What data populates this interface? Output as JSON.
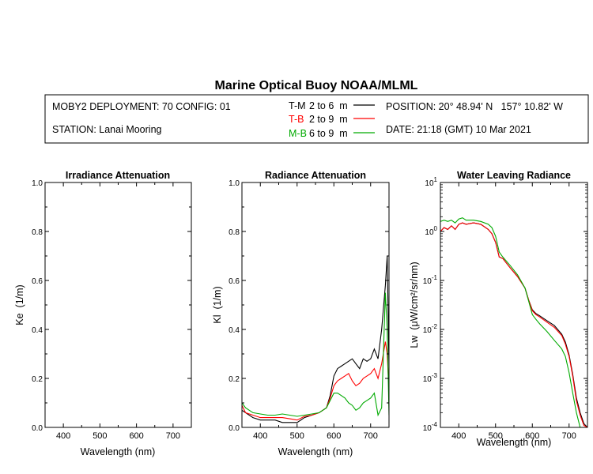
{
  "title": "Marine Optical Buoy NOAA/MLML",
  "info": {
    "deployment": "MOBY2 DEPLOYMENT: 70 CONFIG: 01",
    "station": "STATION: Lanai Mooring",
    "position": "POSITION: 20° 48.94' N   157° 10.82' W",
    "date": "DATE: 21:18 (GMT) 10 Mar 2021"
  },
  "legend": [
    {
      "code": "T-M",
      "range": "2 to 6  m",
      "color": "#000000"
    },
    {
      "code": "T-B",
      "range": "2 to 9  m",
      "color": "#ff0000"
    },
    {
      "code": "M-B",
      "range": "6 to 9  m",
      "color": "#00aa00"
    }
  ],
  "chart_data": [
    {
      "type": "line",
      "title": "Irradiance Attenuation",
      "xlabel": "Wavelength (nm)",
      "ylabel": "Ke  (1/m)",
      "xlim": [
        350,
        750
      ],
      "ylim": [
        0,
        1
      ],
      "xticks": [
        400,
        500,
        600,
        700
      ],
      "yticks": [
        "0.0",
        "0.2",
        "0.4",
        "0.6",
        "0.8",
        "1.0"
      ],
      "series": []
    },
    {
      "type": "line",
      "title": "Radiance Attenuation",
      "xlabel": "Wavelength (nm)",
      "ylabel": "Kl  (1/m)",
      "xlim": [
        350,
        750
      ],
      "ylim": [
        0,
        1
      ],
      "xticks": [
        400,
        500,
        600,
        700
      ],
      "yticks": [
        "0.0",
        "0.2",
        "0.4",
        "0.6",
        "0.8",
        "1.0"
      ],
      "series": [
        {
          "name": "T-M",
          "color": "#000000",
          "x": [
            350,
            360,
            380,
            400,
            420,
            440,
            460,
            480,
            500,
            520,
            540,
            560,
            580,
            590,
            600,
            610,
            620,
            630,
            640,
            650,
            660,
            670,
            680,
            690,
            700,
            710,
            720,
            730,
            740,
            745,
            750
          ],
          "y": [
            0.07,
            0.06,
            0.04,
            0.03,
            0.03,
            0.03,
            0.02,
            0.02,
            0.02,
            0.04,
            0.05,
            0.06,
            0.08,
            0.13,
            0.21,
            0.24,
            0.25,
            0.26,
            0.27,
            0.28,
            0.26,
            0.24,
            0.28,
            0.27,
            0.28,
            0.32,
            0.28,
            0.4,
            0.58,
            0.7,
            0.25
          ]
        },
        {
          "name": "T-B",
          "color": "#ff0000",
          "x": [
            350,
            360,
            380,
            400,
            420,
            440,
            460,
            480,
            500,
            520,
            540,
            560,
            580,
            590,
            600,
            610,
            620,
            630,
            640,
            650,
            660,
            670,
            680,
            690,
            700,
            710,
            720,
            730,
            740,
            745,
            750
          ],
          "y": [
            0.09,
            0.06,
            0.05,
            0.04,
            0.04,
            0.04,
            0.04,
            0.035,
            0.03,
            0.045,
            0.05,
            0.06,
            0.08,
            0.12,
            0.17,
            0.19,
            0.2,
            0.21,
            0.22,
            0.19,
            0.17,
            0.18,
            0.2,
            0.21,
            0.22,
            0.24,
            0.2,
            0.26,
            0.35,
            0.3,
            0.15
          ]
        },
        {
          "name": "M-B",
          "color": "#00aa00",
          "x": [
            350,
            360,
            380,
            400,
            420,
            440,
            460,
            480,
            500,
            520,
            540,
            560,
            580,
            590,
            600,
            610,
            620,
            630,
            640,
            650,
            660,
            670,
            680,
            690,
            700,
            710,
            720,
            730,
            740,
            745,
            750
          ],
          "y": [
            0.1,
            0.08,
            0.06,
            0.055,
            0.05,
            0.05,
            0.055,
            0.05,
            0.045,
            0.05,
            0.055,
            0.06,
            0.08,
            0.11,
            0.14,
            0.14,
            0.13,
            0.12,
            0.1,
            0.09,
            0.07,
            0.08,
            0.1,
            0.11,
            0.12,
            0.14,
            0.05,
            0.08,
            0.55,
            0.4,
            0.05
          ]
        }
      ]
    },
    {
      "type": "line",
      "title": "Water Leaving Radiance",
      "xlabel": "Wavelength (nm)",
      "ylabel": "Lw  (μW/cm²/sr/nm)",
      "xlim": [
        350,
        750
      ],
      "ylim": [
        0.0001,
        10
      ],
      "yscale": "log",
      "xticks": [
        400,
        500,
        600,
        700
      ],
      "yticks": [
        {
          "base": "10",
          "exp": "1",
          "value": 10
        },
        {
          "base": "10",
          "exp": "0",
          "value": 1
        },
        {
          "base": "10",
          "exp": "-1",
          "value": 0.1
        },
        {
          "base": "10",
          "exp": "-2",
          "value": 0.01
        },
        {
          "base": "10",
          "exp": "-3",
          "value": 0.001
        },
        {
          "base": "10",
          "exp": "-4",
          "value": 0.0001
        }
      ],
      "series": [
        {
          "name": "T-M",
          "color": "#000000",
          "x": [
            350,
            360,
            370,
            380,
            390,
            400,
            410,
            420,
            440,
            460,
            480,
            490,
            500,
            510,
            520,
            540,
            560,
            580,
            590,
            600,
            610,
            620,
            640,
            660,
            680,
            690,
            700,
            710,
            720,
            730,
            740,
            750
          ],
          "y": [
            1.0,
            1.2,
            1.1,
            1.3,
            1.1,
            1.4,
            1.5,
            1.4,
            1.5,
            1.4,
            1.1,
            0.9,
            0.6,
            0.3,
            0.28,
            0.18,
            0.12,
            0.07,
            0.04,
            0.025,
            0.021,
            0.019,
            0.015,
            0.012,
            0.008,
            0.0055,
            0.003,
            0.0012,
            0.0004,
            0.0002,
            0.00012,
            0.0001
          ]
        },
        {
          "name": "T-B",
          "color": "#ff0000",
          "x": [
            350,
            360,
            370,
            380,
            390,
            400,
            410,
            420,
            440,
            460,
            480,
            490,
            500,
            510,
            520,
            540,
            560,
            580,
            590,
            600,
            610,
            620,
            640,
            660,
            680,
            690,
            700,
            710,
            720,
            730,
            740,
            750
          ],
          "y": [
            1.0,
            1.2,
            1.1,
            1.3,
            1.1,
            1.4,
            1.5,
            1.4,
            1.5,
            1.4,
            1.1,
            0.9,
            0.6,
            0.3,
            0.28,
            0.18,
            0.12,
            0.07,
            0.04,
            0.024,
            0.02,
            0.018,
            0.014,
            0.011,
            0.0075,
            0.005,
            0.0028,
            0.0011,
            0.00035,
            0.00018,
            0.00011,
            0.0001
          ]
        },
        {
          "name": "M-B",
          "color": "#00aa00",
          "x": [
            350,
            360,
            370,
            380,
            390,
            400,
            410,
            420,
            440,
            460,
            480,
            490,
            500,
            510,
            520,
            540,
            560,
            580,
            590,
            600,
            610,
            620,
            640,
            660,
            680,
            690,
            700,
            710,
            720,
            730,
            740,
            750
          ],
          "y": [
            1.6,
            1.7,
            1.6,
            1.7,
            1.5,
            1.8,
            1.9,
            1.7,
            1.7,
            1.6,
            1.4,
            1.2,
            0.8,
            0.38,
            0.3,
            0.2,
            0.13,
            0.07,
            0.038,
            0.02,
            0.016,
            0.013,
            0.009,
            0.006,
            0.004,
            0.0028,
            0.0013,
            0.0005,
            0.0002,
            0.0001,
            0.0001,
            0.0001
          ]
        }
      ]
    }
  ]
}
